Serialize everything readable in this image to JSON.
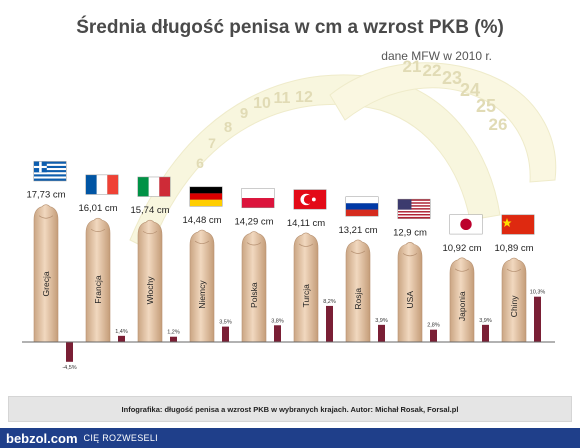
{
  "chart_data": {
    "type": "bar",
    "title": "Średnia długość penisa w cm a wzrost PKB (%)",
    "subtitle": "dane MFW w 2010 r.",
    "categories": [
      "Grecja",
      "Francja",
      "Włochy",
      "Niemcy",
      "Polska",
      "Turcja",
      "Rosja",
      "USA",
      "Japonia",
      "Chiny"
    ],
    "length_labels": [
      "17,73 cm",
      "16,01 cm",
      "15,74 cm",
      "14,48 cm",
      "14,29 cm",
      "14,11 cm",
      "13,21 cm",
      "12,9 cm",
      "10,92 cm",
      "10,89 cm"
    ],
    "series": [
      {
        "values": [
          17.73,
          16.01,
          15.74,
          14.48,
          14.29,
          14.11,
          13.21,
          12.9,
          10.92,
          10.89
        ]
      },
      {
        "values": [
          -4.5,
          1.4,
          1.2,
          3.5,
          3.8,
          8.2,
          3.9,
          2.8,
          3.9,
          10.3
        ]
      }
    ],
    "gdp_labels": [
      "-4,5%",
      "1,4%",
      "1,2%",
      "3,5%",
      "3,8%",
      "8,2%",
      "3,9%",
      "2,8%",
      "3,9%",
      "10,3%"
    ],
    "flags": [
      "greece",
      "france",
      "italy",
      "germany",
      "poland",
      "turkey",
      "russia",
      "usa",
      "japan",
      "china"
    ],
    "colors": {
      "gdp_bar": "#7a1f35",
      "shape": "#e2c3a6",
      "baseline": "#666666"
    },
    "tape_numbers": [
      "6",
      "7",
      "8",
      "9",
      "10",
      "11",
      "12",
      "21",
      "22",
      "23",
      "24",
      "25",
      "26"
    ],
    "grid": false
  },
  "caption": "Infografika: długość penisa a wzrost PKB w wybranych krajach. Autor: Michał Rosak, Forsal.pl",
  "footer": {
    "logo": "bebzol.com",
    "tagline": "CIĘ ROZWESELI"
  }
}
